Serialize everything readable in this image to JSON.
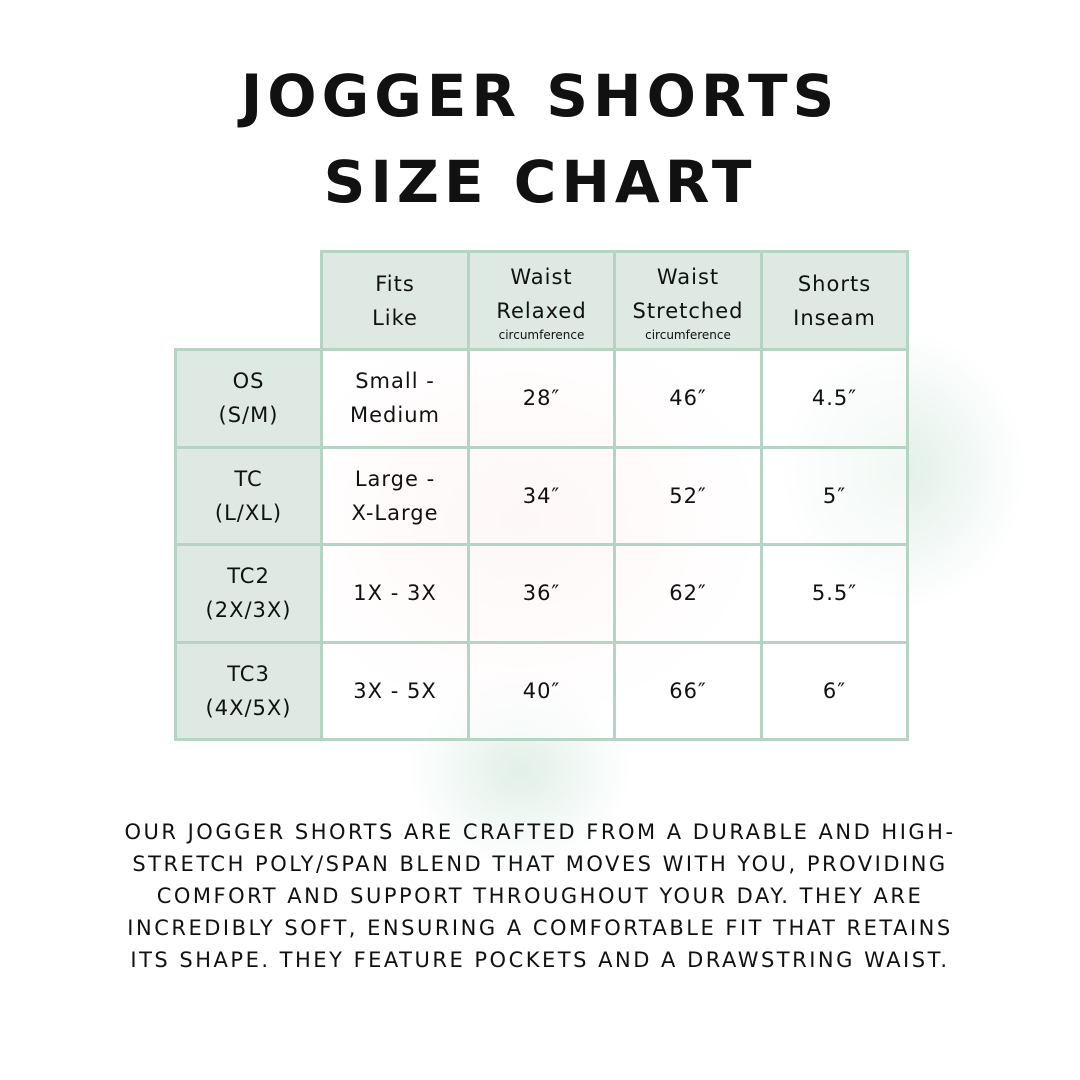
{
  "header": {
    "title_lines": [
      "JOGGER SHORTS",
      "SIZE CHART"
    ]
  },
  "table": {
    "columns": [
      {
        "lines": [
          "Fits",
          "Like"
        ]
      },
      {
        "lines": [
          "Waist",
          "Relaxed"
        ],
        "note": "circumference"
      },
      {
        "lines": [
          "Waist",
          "Stretched"
        ],
        "note": "circumference"
      },
      {
        "lines": [
          "Shorts",
          "Inseam"
        ]
      }
    ],
    "rows": [
      {
        "size": [
          "OS",
          "(S/M)"
        ],
        "fits": [
          "Small -",
          "Medium"
        ],
        "cells": [
          "28″",
          "46″",
          "4.5″"
        ]
      },
      {
        "size": [
          "TC",
          "(L/XL)"
        ],
        "fits": [
          "Large -",
          "X-Large"
        ],
        "cells": [
          "34″",
          "52″",
          "5″"
        ]
      },
      {
        "size": [
          "TC2",
          "(2X/3X)"
        ],
        "fits": [
          "1X - 3X"
        ],
        "cells": [
          "36″",
          "62″",
          "5.5″"
        ]
      },
      {
        "size": [
          "TC3",
          "(4X/5X)"
        ],
        "fits": [
          "3X - 5X"
        ],
        "cells": [
          "40″",
          "66″",
          "6″"
        ]
      }
    ]
  },
  "description": {
    "lines": [
      "OUR JOGGER SHORTS ARE CRAFTED FROM A DURABLE AND HIGH-",
      "STRETCH POLY/SPAN BLEND THAT MOVES WITH YOU, PROVIDING",
      "COMFORT AND SUPPORT THROUGHOUT YOUR DAY. THEY ARE",
      "INCREDIBLY SOFT, ENSURING A COMFORTABLE FIT THAT RETAINS",
      "ITS SHAPE. THEY FEATURE POCKETS AND A DRAWSTRING WAIST."
    ]
  }
}
